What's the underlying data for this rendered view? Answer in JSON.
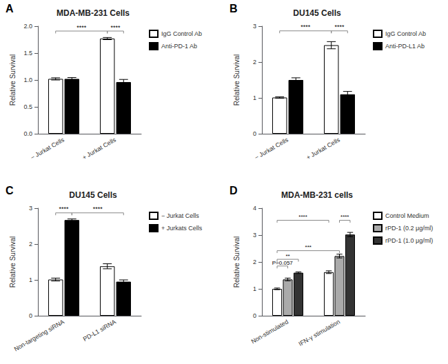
{
  "chart_data": [
    {
      "type": "bar",
      "title": "MDA-MB-231 Cells",
      "ylabel": "Relative Survival",
      "categories": [
        "− Jurkat Cells",
        "+ Jurkat Cells"
      ],
      "series": [
        {
          "name": "IgG Control Ab",
          "color": "white",
          "values": [
            1.02,
            1.77
          ],
          "errors": [
            0.02,
            0.02
          ]
        },
        {
          "name": "Anti-PD-1 Ab",
          "color": "black",
          "values": [
            1.02,
            0.96
          ],
          "errors": [
            0.025,
            0.05
          ]
        }
      ],
      "ylim": [
        0,
        2.0
      ],
      "yticks": [
        {
          "value": 0,
          "label": "0.0"
        },
        0.5,
        {
          "value": 1,
          "label": "1.0"
        },
        1.5,
        {
          "value": 2,
          "label": "2.0"
        }
      ],
      "grid": false,
      "legend": "upper right",
      "annotations": [
        {
          "text": "A"
        },
        {
          "text": "****",
          "y": 1.91,
          "from": [
            "− Jurkat Cells",
            "IgG Control Ab"
          ],
          "to": [
            "+ Jurkat Cells",
            "IgG Control Ab"
          ]
        },
        {
          "text": "****",
          "y": 1.91,
          "from": [
            "+ Jurkat Cells",
            "IgG Control Ab"
          ],
          "to": [
            "+ Jurkat Cells",
            "Anti-PD-1 Ab"
          ]
        }
      ]
    },
    {
      "type": "bar",
      "title": "DU145 Cells",
      "ylabel": "Relative Survival",
      "categories": [
        "− Jurkat Cells",
        "+ Jurkat Cells"
      ],
      "series": [
        {
          "name": "IgG Control Ab",
          "color": "white",
          "values": [
            1.01,
            2.47
          ],
          "errors": [
            0.02,
            0.1
          ]
        },
        {
          "name": "Anti-PD-L1 Ab",
          "color": "black",
          "values": [
            1.5,
            1.1
          ],
          "errors": [
            0.06,
            0.08
          ]
        }
      ],
      "ylim": [
        0,
        3.0
      ],
      "yticks": [
        0,
        1,
        2,
        3
      ],
      "grid": false,
      "legend": "upper right",
      "annotations": [
        {
          "text": "B"
        },
        {
          "text": "****",
          "y": 2.87,
          "from": [
            "− Jurkat Cells",
            "IgG Control Ab"
          ],
          "to": [
            "+ Jurkat Cells",
            "IgG Control Ab"
          ]
        },
        {
          "text": "****",
          "y": 2.87,
          "from": [
            "+ Jurkat Cells",
            "IgG Control Ab"
          ],
          "to": [
            "+ Jurkat Cells",
            "Anti-PD-L1 Ab"
          ]
        }
      ]
    },
    {
      "type": "bar",
      "title": "DU145 Cells",
      "ylabel": "Relative Survival",
      "categories": [
        "Non-targeting siRNA",
        "PD-L1 siRNA"
      ],
      "series": [
        {
          "name": "− Jurkat Cells",
          "color": "white",
          "values": [
            1.01,
            1.38
          ],
          "errors": [
            0.04,
            0.07
          ]
        },
        {
          "name": "+ Jurkats Cells",
          "color": "black",
          "values": [
            2.67,
            0.95
          ],
          "errors": [
            0.03,
            0.05
          ]
        }
      ],
      "ylim": [
        0,
        3.0
      ],
      "yticks": [
        0,
        1,
        2,
        3
      ],
      "grid": false,
      "legend": "upper right",
      "annotations": [
        {
          "text": "C"
        },
        {
          "text": "****",
          "y": 2.87,
          "from": [
            "Non-targeting siRNA",
            "− Jurkat Cells"
          ],
          "to": [
            "Non-targeting siRNA",
            "+ Jurkats Cells"
          ]
        },
        {
          "text": "****",
          "y": 2.87,
          "from": [
            "Non-targeting siRNA",
            "+ Jurkats Cells"
          ],
          "to": [
            "PD-L1 siRNA",
            "+ Jurkats Cells"
          ]
        }
      ]
    },
    {
      "type": "bar",
      "title": "MDA-MB-231 cells",
      "ylabel": "Relative Survival",
      "categories": [
        "Non-stimulated",
        "IFN-γ stimulation"
      ],
      "series": [
        {
          "name": "Control Medium",
          "color": "white",
          "values": [
            1.0,
            1.62
          ],
          "errors": [
            0.03,
            0.05
          ]
        },
        {
          "name": "rPD-1 (0.2 μg/ml)",
          "color": "#aaaaaa",
          "values": [
            1.35,
            2.22
          ],
          "errors": [
            0.05,
            0.07
          ]
        },
        {
          "name": "rPD-1 (1.0 μg/ml)",
          "color": "#333333",
          "values": [
            1.6,
            3.02
          ],
          "errors": [
            0.03,
            0.08
          ]
        }
      ],
      "ylim": [
        0,
        4.0
      ],
      "yticks": [
        0,
        1,
        2,
        3,
        4
      ],
      "grid": false,
      "legend": "upper right",
      "annotations": [
        {
          "text": "D"
        },
        {
          "text": "P=0.057",
          "y": 1.85,
          "from": [
            "Non-stimulated",
            "Control Medium"
          ],
          "to": [
            "Non-stimulated",
            "rPD-1 (0.2 μg/ml)"
          ]
        },
        {
          "text": "**",
          "y": 2.1,
          "from": [
            "Non-stimulated",
            "Control Medium"
          ],
          "to": [
            "Non-stimulated",
            "rPD-1 (1.0 μg/ml)"
          ]
        },
        {
          "text": "***",
          "y": 2.42,
          "from": [
            "Non-stimulated",
            "Control Medium"
          ],
          "to": [
            "IFN-γ stimulation",
            "rPD-1 (0.2 μg/ml)"
          ]
        },
        {
          "text": "****",
          "y": 3.55,
          "from": [
            "Non-stimulated",
            "Control Medium"
          ],
          "to": [
            "IFN-γ stimulation",
            "Control Medium"
          ]
        },
        {
          "text": "****",
          "y": 3.55,
          "from": [
            "IFN-γ stimulation",
            "rPD-1 (0.2 μg/ml)"
          ],
          "to": [
            "IFN-γ stimulation",
            "rPD-1 (1.0 μg/ml)"
          ]
        }
      ]
    }
  ]
}
